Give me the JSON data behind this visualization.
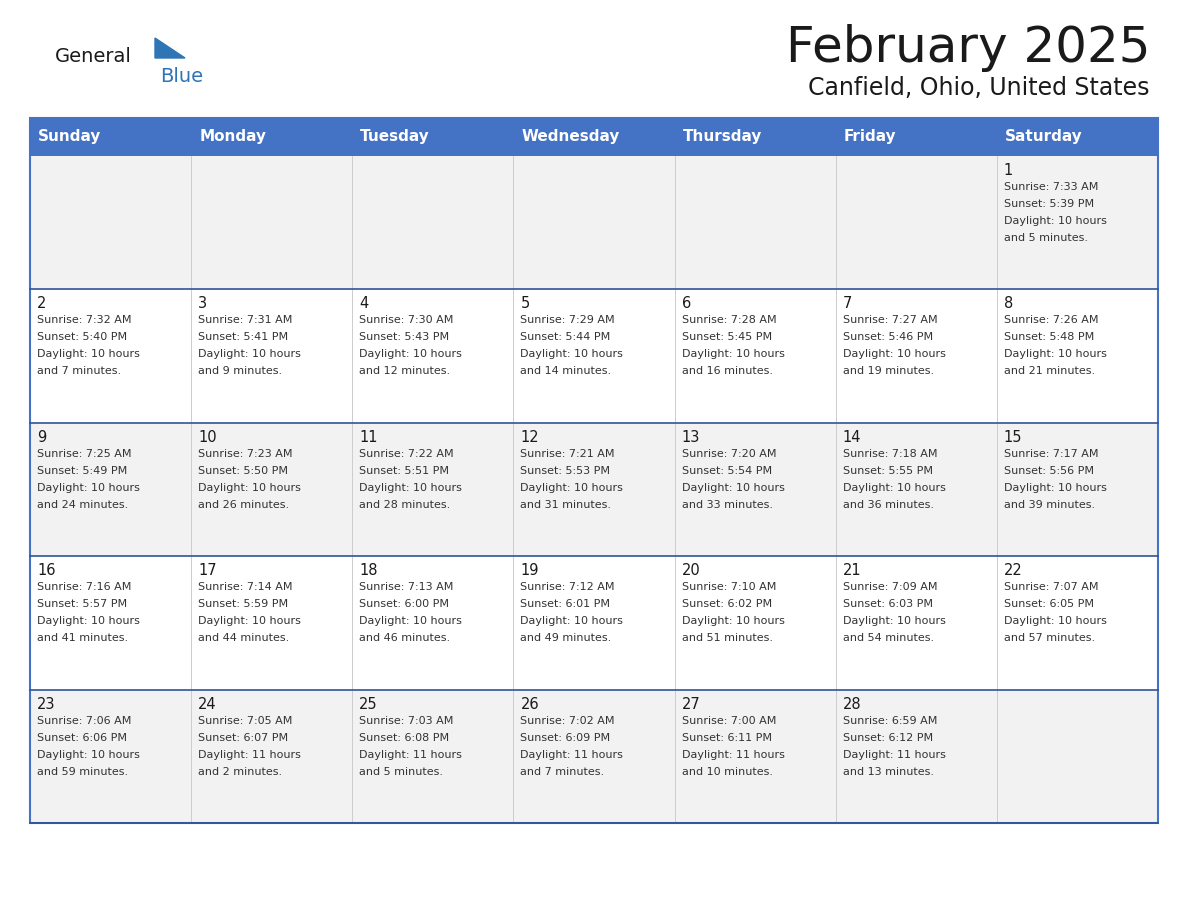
{
  "title": "February 2025",
  "subtitle": "Canfield, Ohio, United States",
  "header_bg": "#4472C4",
  "header_text_color": "#FFFFFF",
  "cell_bg_odd": "#F2F2F2",
  "cell_bg_even": "#FFFFFF",
  "row_separator_color": "#2F5496",
  "col_separator_color": "#CCCCCC",
  "outer_border_color": "#4472C4",
  "day_headers": [
    "Sunday",
    "Monday",
    "Tuesday",
    "Wednesday",
    "Thursday",
    "Friday",
    "Saturday"
  ],
  "title_color": "#1a1a1a",
  "subtitle_color": "#1a1a1a",
  "day_num_color": "#1a1a1a",
  "info_color": "#333333",
  "logo_general_color": "#1a1a1a",
  "logo_blue_color": "#2E75B6",
  "days": [
    {
      "day": 1,
      "col": 6,
      "row": 0,
      "sunrise": "7:33 AM",
      "sunset": "5:39 PM",
      "daylight_hours": 10,
      "daylight_minutes": 5
    },
    {
      "day": 2,
      "col": 0,
      "row": 1,
      "sunrise": "7:32 AM",
      "sunset": "5:40 PM",
      "daylight_hours": 10,
      "daylight_minutes": 7
    },
    {
      "day": 3,
      "col": 1,
      "row": 1,
      "sunrise": "7:31 AM",
      "sunset": "5:41 PM",
      "daylight_hours": 10,
      "daylight_minutes": 9
    },
    {
      "day": 4,
      "col": 2,
      "row": 1,
      "sunrise": "7:30 AM",
      "sunset": "5:43 PM",
      "daylight_hours": 10,
      "daylight_minutes": 12
    },
    {
      "day": 5,
      "col": 3,
      "row": 1,
      "sunrise": "7:29 AM",
      "sunset": "5:44 PM",
      "daylight_hours": 10,
      "daylight_minutes": 14
    },
    {
      "day": 6,
      "col": 4,
      "row": 1,
      "sunrise": "7:28 AM",
      "sunset": "5:45 PM",
      "daylight_hours": 10,
      "daylight_minutes": 16
    },
    {
      "day": 7,
      "col": 5,
      "row": 1,
      "sunrise": "7:27 AM",
      "sunset": "5:46 PM",
      "daylight_hours": 10,
      "daylight_minutes": 19
    },
    {
      "day": 8,
      "col": 6,
      "row": 1,
      "sunrise": "7:26 AM",
      "sunset": "5:48 PM",
      "daylight_hours": 10,
      "daylight_minutes": 21
    },
    {
      "day": 9,
      "col": 0,
      "row": 2,
      "sunrise": "7:25 AM",
      "sunset": "5:49 PM",
      "daylight_hours": 10,
      "daylight_minutes": 24
    },
    {
      "day": 10,
      "col": 1,
      "row": 2,
      "sunrise": "7:23 AM",
      "sunset": "5:50 PM",
      "daylight_hours": 10,
      "daylight_minutes": 26
    },
    {
      "day": 11,
      "col": 2,
      "row": 2,
      "sunrise": "7:22 AM",
      "sunset": "5:51 PM",
      "daylight_hours": 10,
      "daylight_minutes": 28
    },
    {
      "day": 12,
      "col": 3,
      "row": 2,
      "sunrise": "7:21 AM",
      "sunset": "5:53 PM",
      "daylight_hours": 10,
      "daylight_minutes": 31
    },
    {
      "day": 13,
      "col": 4,
      "row": 2,
      "sunrise": "7:20 AM",
      "sunset": "5:54 PM",
      "daylight_hours": 10,
      "daylight_minutes": 33
    },
    {
      "day": 14,
      "col": 5,
      "row": 2,
      "sunrise": "7:18 AM",
      "sunset": "5:55 PM",
      "daylight_hours": 10,
      "daylight_minutes": 36
    },
    {
      "day": 15,
      "col": 6,
      "row": 2,
      "sunrise": "7:17 AM",
      "sunset": "5:56 PM",
      "daylight_hours": 10,
      "daylight_minutes": 39
    },
    {
      "day": 16,
      "col": 0,
      "row": 3,
      "sunrise": "7:16 AM",
      "sunset": "5:57 PM",
      "daylight_hours": 10,
      "daylight_minutes": 41
    },
    {
      "day": 17,
      "col": 1,
      "row": 3,
      "sunrise": "7:14 AM",
      "sunset": "5:59 PM",
      "daylight_hours": 10,
      "daylight_minutes": 44
    },
    {
      "day": 18,
      "col": 2,
      "row": 3,
      "sunrise": "7:13 AM",
      "sunset": "6:00 PM",
      "daylight_hours": 10,
      "daylight_minutes": 46
    },
    {
      "day": 19,
      "col": 3,
      "row": 3,
      "sunrise": "7:12 AM",
      "sunset": "6:01 PM",
      "daylight_hours": 10,
      "daylight_minutes": 49
    },
    {
      "day": 20,
      "col": 4,
      "row": 3,
      "sunrise": "7:10 AM",
      "sunset": "6:02 PM",
      "daylight_hours": 10,
      "daylight_minutes": 51
    },
    {
      "day": 21,
      "col": 5,
      "row": 3,
      "sunrise": "7:09 AM",
      "sunset": "6:03 PM",
      "daylight_hours": 10,
      "daylight_minutes": 54
    },
    {
      "day": 22,
      "col": 6,
      "row": 3,
      "sunrise": "7:07 AM",
      "sunset": "6:05 PM",
      "daylight_hours": 10,
      "daylight_minutes": 57
    },
    {
      "day": 23,
      "col": 0,
      "row": 4,
      "sunrise": "7:06 AM",
      "sunset": "6:06 PM",
      "daylight_hours": 10,
      "daylight_minutes": 59
    },
    {
      "day": 24,
      "col": 1,
      "row": 4,
      "sunrise": "7:05 AM",
      "sunset": "6:07 PM",
      "daylight_hours": 11,
      "daylight_minutes": 2
    },
    {
      "day": 25,
      "col": 2,
      "row": 4,
      "sunrise": "7:03 AM",
      "sunset": "6:08 PM",
      "daylight_hours": 11,
      "daylight_minutes": 5
    },
    {
      "day": 26,
      "col": 3,
      "row": 4,
      "sunrise": "7:02 AM",
      "sunset": "6:09 PM",
      "daylight_hours": 11,
      "daylight_minutes": 7
    },
    {
      "day": 27,
      "col": 4,
      "row": 4,
      "sunrise": "7:00 AM",
      "sunset": "6:11 PM",
      "daylight_hours": 11,
      "daylight_minutes": 10
    },
    {
      "day": 28,
      "col": 5,
      "row": 4,
      "sunrise": "6:59 AM",
      "sunset": "6:12 PM",
      "daylight_hours": 11,
      "daylight_minutes": 13
    }
  ]
}
